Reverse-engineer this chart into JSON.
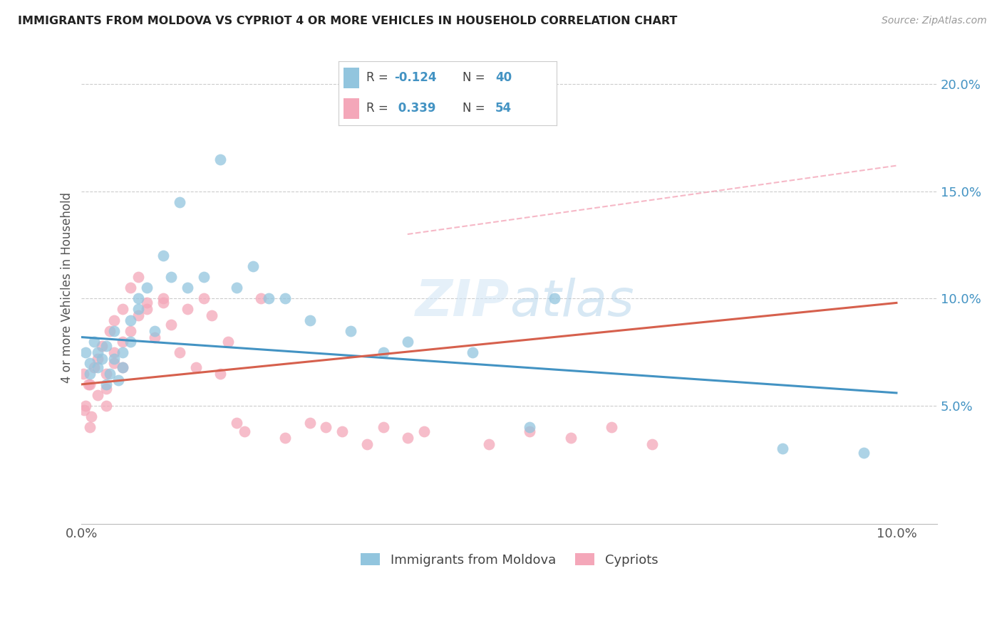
{
  "title": "IMMIGRANTS FROM MOLDOVA VS CYPRIOT 4 OR MORE VEHICLES IN HOUSEHOLD CORRELATION CHART",
  "source": "Source: ZipAtlas.com",
  "ylabel": "4 or more Vehicles in Household",
  "legend1_label": "Immigrants from Moldova",
  "legend2_label": "Cypriots",
  "r1": -0.124,
  "n1": 40,
  "r2": 0.339,
  "n2": 54,
  "xlim": [
    0.0,
    0.105
  ],
  "ylim": [
    -0.005,
    0.215
  ],
  "ytick_vals": [
    0.05,
    0.1,
    0.15,
    0.2
  ],
  "ytick_labels": [
    "5.0%",
    "10.0%",
    "15.0%",
    "20.0%"
  ],
  "xtick_vals": [
    0.0,
    0.02,
    0.04,
    0.06,
    0.08,
    0.1
  ],
  "xtick_labels": [
    "0.0%",
    "",
    "",
    "",
    "",
    "10.0%"
  ],
  "color_blue": "#92c5de",
  "color_pink": "#f4a7b9",
  "color_line_blue": "#4393c3",
  "color_line_pink": "#d6604d",
  "color_dashed": "#f4a7b9",
  "background_color": "#ffffff",
  "moldova_x": [
    0.0005,
    0.001,
    0.001,
    0.0015,
    0.002,
    0.002,
    0.0025,
    0.003,
    0.003,
    0.0035,
    0.004,
    0.004,
    0.0045,
    0.005,
    0.005,
    0.006,
    0.006,
    0.007,
    0.007,
    0.008,
    0.009,
    0.01,
    0.011,
    0.012,
    0.013,
    0.015,
    0.017,
    0.019,
    0.021,
    0.023,
    0.025,
    0.028,
    0.033,
    0.037,
    0.04,
    0.048,
    0.055,
    0.058,
    0.086,
    0.096
  ],
  "moldova_y": [
    0.075,
    0.07,
    0.065,
    0.08,
    0.068,
    0.075,
    0.072,
    0.06,
    0.078,
    0.065,
    0.085,
    0.072,
    0.062,
    0.075,
    0.068,
    0.09,
    0.08,
    0.095,
    0.1,
    0.105,
    0.085,
    0.12,
    0.11,
    0.145,
    0.105,
    0.11,
    0.165,
    0.105,
    0.115,
    0.1,
    0.1,
    0.09,
    0.085,
    0.075,
    0.08,
    0.075,
    0.04,
    0.1,
    0.03,
    0.028
  ],
  "cypriot_x": [
    0.0002,
    0.0005,
    0.001,
    0.001,
    0.0015,
    0.002,
    0.002,
    0.0025,
    0.003,
    0.003,
    0.0035,
    0.004,
    0.004,
    0.004,
    0.005,
    0.005,
    0.005,
    0.006,
    0.006,
    0.007,
    0.007,
    0.008,
    0.008,
    0.009,
    0.01,
    0.01,
    0.011,
    0.012,
    0.013,
    0.014,
    0.015,
    0.016,
    0.017,
    0.018,
    0.019,
    0.02,
    0.022,
    0.025,
    0.028,
    0.03,
    0.032,
    0.035,
    0.037,
    0.04,
    0.042,
    0.05,
    0.055,
    0.06,
    0.065,
    0.07,
    0.0003,
    0.0008,
    0.0012,
    0.003
  ],
  "cypriot_y": [
    0.065,
    0.05,
    0.06,
    0.04,
    0.068,
    0.055,
    0.072,
    0.078,
    0.065,
    0.058,
    0.085,
    0.07,
    0.075,
    0.09,
    0.08,
    0.095,
    0.068,
    0.085,
    0.105,
    0.092,
    0.11,
    0.098,
    0.095,
    0.082,
    0.098,
    0.1,
    0.088,
    0.075,
    0.095,
    0.068,
    0.1,
    0.092,
    0.065,
    0.08,
    0.042,
    0.038,
    0.1,
    0.035,
    0.042,
    0.04,
    0.038,
    0.032,
    0.04,
    0.035,
    0.038,
    0.032,
    0.038,
    0.035,
    0.04,
    0.032,
    0.048,
    0.06,
    0.045,
    0.05
  ],
  "mol_line_x": [
    0.0,
    0.1
  ],
  "mol_line_y": [
    0.082,
    0.056
  ],
  "cyp_line_x": [
    0.0,
    0.1
  ],
  "cyp_line_y": [
    0.06,
    0.098
  ],
  "dashed_line_x": [
    0.04,
    0.1
  ],
  "dashed_line_y": [
    0.13,
    0.162
  ]
}
